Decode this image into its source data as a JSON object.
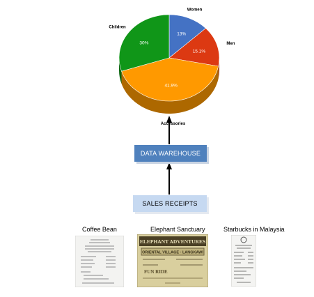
{
  "chart_data": {
    "type": "pie",
    "title": "",
    "style": "3d",
    "categories": [
      "Women",
      "Men",
      "Accessories",
      "Children"
    ],
    "values": [
      13,
      15.1,
      41.9,
      30
    ],
    "value_labels": [
      "13%",
      "15.1%",
      "41.9%",
      "30%"
    ],
    "colors": [
      "#4472c4",
      "#dc3912",
      "#ff9900",
      "#109618"
    ]
  },
  "boxes": {
    "data_warehouse": "DATA WAREHOUSE",
    "sales_receipts": "SALES RECEIPTS"
  },
  "receipts": [
    {
      "caption": "Coffee Bean"
    },
    {
      "caption": "Elephant Sanctuary",
      "heading": "ELEPHANT ADVENTURES",
      "subheading": "ORIENTAL VILLAGE · LANGKAWI",
      "stamp": "FUN RIDE"
    },
    {
      "caption": "Starbucks in Malaysia"
    }
  ]
}
